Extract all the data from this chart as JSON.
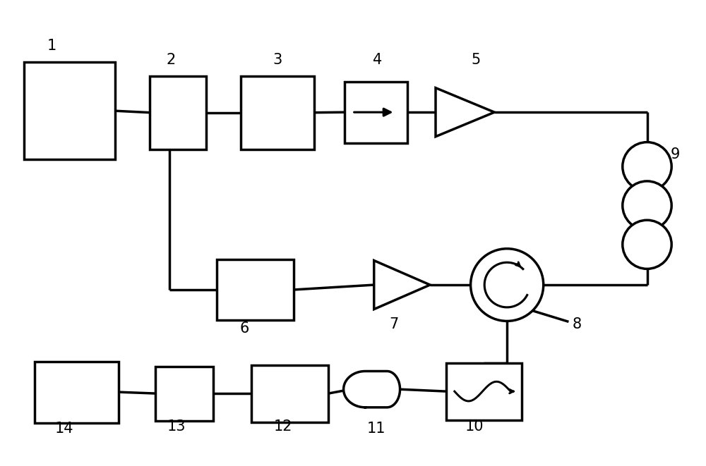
{
  "bg_color": "#ffffff",
  "line_color": "#000000",
  "lw": 2.5,
  "fig_width": 10.0,
  "fig_height": 6.61,
  "dpi": 100,
  "fs": 15
}
